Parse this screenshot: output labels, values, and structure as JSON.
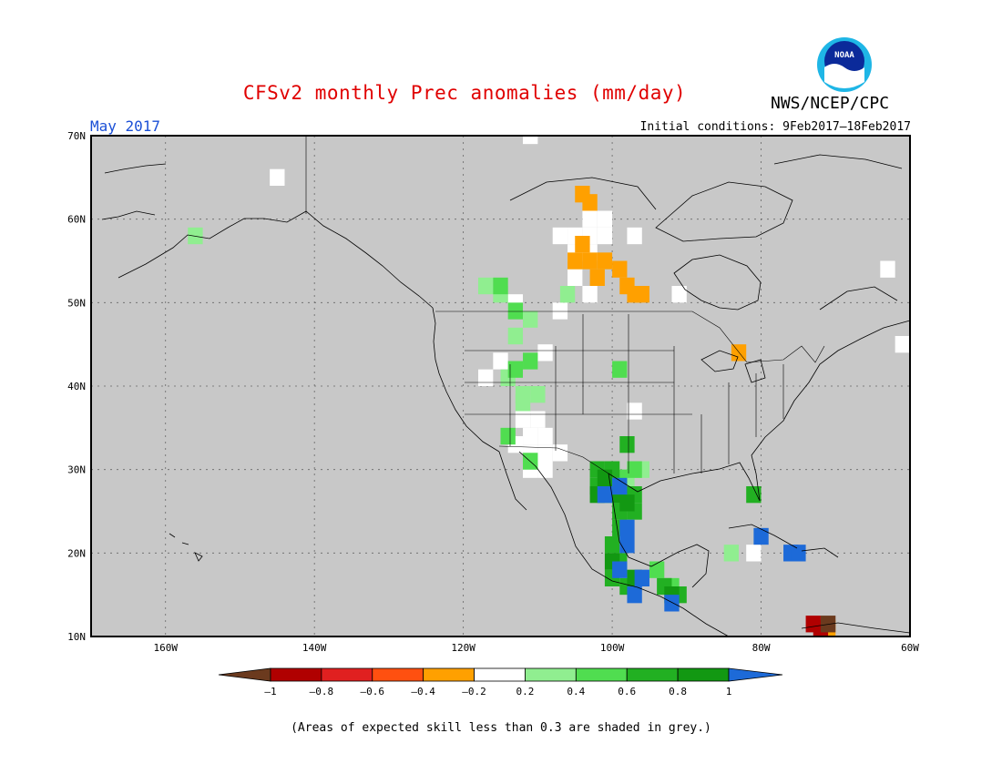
{
  "header": {
    "title": "CFSv2 monthly Prec anomalies (mm/day)",
    "org": "NWS/NCEP/CPC",
    "logo_text": "NOAA",
    "month": "May 2017",
    "initial_conditions": "Initial conditions: 9Feb2017–18Feb2017"
  },
  "map": {
    "lon_range": [
      -170,
      -60
    ],
    "lat_range": [
      10,
      70
    ],
    "x_ticks": [
      "160W",
      "140W",
      "120W",
      "100W",
      "80W",
      "60W"
    ],
    "y_ticks": [
      "70N",
      "60N",
      "50N",
      "40N",
      "30N",
      "20N",
      "10N"
    ],
    "background_color": "#c8c8c8",
    "grid": "dotted"
  },
  "colorbar": {
    "labels": [
      "–1",
      "–0.8",
      "–0.6",
      "–0.4",
      "–0.2",
      "0.2",
      "0.4",
      "0.6",
      "0.8",
      "1"
    ],
    "colors": {
      "lt_-1": "#6b3a1e",
      "-1_-0.8": "#b00000",
      "-0.8_-0.6": "#e02020",
      "-0.6_-0.4": "#ff5010",
      "-0.4_-0.2": "#ffa000",
      "-0.2_0.2": "#ffffff",
      "0.2_0.4": "#90ee90",
      "0.4_0.6": "#50dd50",
      "0.6_0.8": "#22b022",
      "0.8_1": "#129812",
      "gt_1": "#1d6ad8"
    }
  },
  "footnote": "(Areas of expected skill less than 0.3 are shaded in grey.)"
}
